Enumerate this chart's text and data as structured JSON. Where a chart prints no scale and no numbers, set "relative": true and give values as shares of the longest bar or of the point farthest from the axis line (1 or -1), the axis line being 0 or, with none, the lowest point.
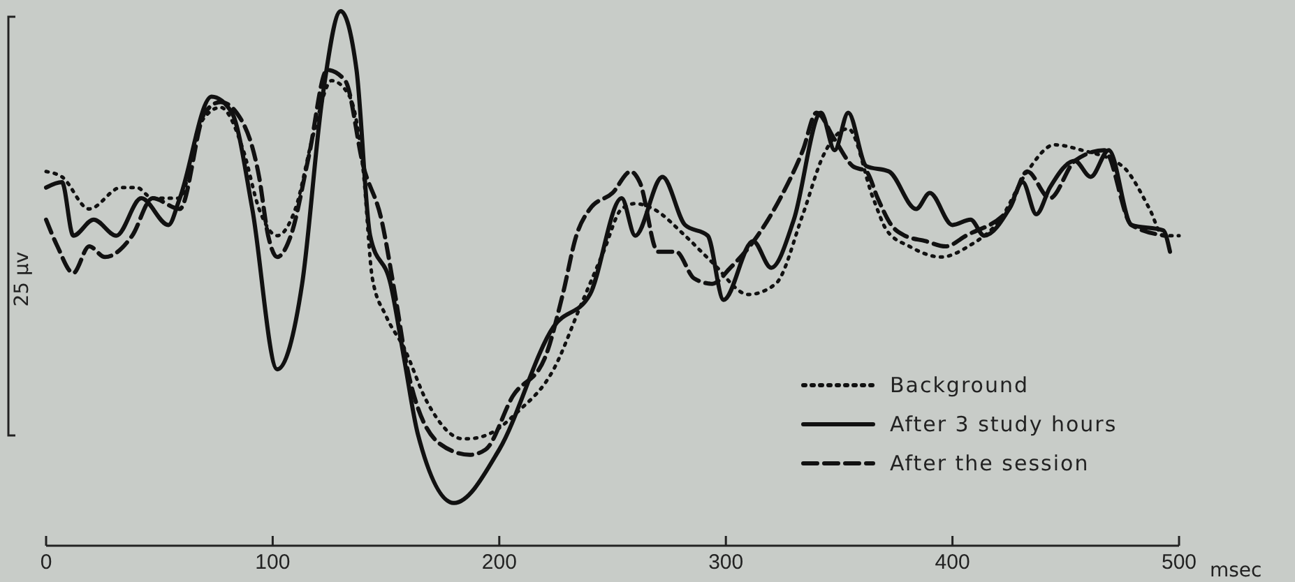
{
  "chart_data": {
    "type": "line",
    "relative": true,
    "xlabel": "msec",
    "ylabel": "25 µv",
    "xlim": [
      0,
      500
    ],
    "xticks": [
      0,
      100,
      200,
      300,
      400,
      500
    ],
    "legend": "bottom right",
    "grid": false,
    "marker": "none",
    "series": [
      {
        "name": "Background",
        "color": "#111111",
        "line_style": "dotted",
        "x": [
          0,
          7,
          19,
          33,
          40,
          47,
          59,
          68,
          77,
          87,
          94,
          102,
          110,
          118,
          126,
          134,
          140,
          144,
          150,
          158,
          168,
          184,
          186,
          196,
          208,
          224,
          236,
          246,
          254,
          260,
          268,
          282,
          294,
          310,
          322,
          334,
          343,
          354,
          365,
          371,
          381,
          395,
          407,
          421,
          433,
          445,
          457,
          475,
          487,
          493,
          500
        ],
        "values": [
          0.7,
          0.69,
          0.63,
          0.67,
          0.67,
          0.65,
          0.65,
          0.79,
          0.82,
          0.74,
          0.63,
          0.58,
          0.63,
          0.77,
          0.87,
          0.84,
          0.7,
          0.5,
          0.43,
          0.37,
          0.27,
          0.2,
          0.2,
          0.21,
          0.25,
          0.33,
          0.45,
          0.55,
          0.63,
          0.64,
          0.63,
          0.58,
          0.53,
          0.47,
          0.49,
          0.62,
          0.73,
          0.78,
          0.65,
          0.59,
          0.56,
          0.54,
          0.56,
          0.61,
          0.7,
          0.75,
          0.74,
          0.71,
          0.63,
          0.58,
          0.58
        ]
      },
      {
        "name": "After 3 study hours",
        "color": "#111111",
        "line_style": "solid",
        "x": [
          0,
          7,
          12,
          21,
          31,
          42,
          54,
          59,
          73,
          82,
          91,
          102,
          113,
          122,
          130,
          137,
          143,
          152,
          158,
          164,
          180,
          200,
          224,
          240,
          254,
          260,
          272,
          282,
          292,
          299,
          312,
          320,
          330,
          342,
          348,
          354,
          362,
          372,
          384,
          390,
          400,
          408,
          414,
          425,
          431,
          437,
          443,
          454,
          461,
          469,
          479,
          493,
          496
        ],
        "values": [
          0.67,
          0.68,
          0.58,
          0.61,
          0.58,
          0.65,
          0.6,
          0.65,
          0.84,
          0.81,
          0.63,
          0.33,
          0.49,
          0.84,
          1.0,
          0.89,
          0.58,
          0.49,
          0.35,
          0.21,
          0.08,
          0.18,
          0.41,
          0.47,
          0.65,
          0.58,
          0.69,
          0.6,
          0.58,
          0.46,
          0.57,
          0.52,
          0.61,
          0.81,
          0.74,
          0.81,
          0.71,
          0.7,
          0.63,
          0.66,
          0.6,
          0.61,
          0.58,
          0.63,
          0.68,
          0.62,
          0.67,
          0.72,
          0.69,
          0.74,
          0.6,
          0.59,
          0.55
        ]
      },
      {
        "name": "After the session",
        "color": "#111111",
        "line_style": "dashed",
        "x": [
          0,
          5,
          12,
          19,
          26,
          38,
          47,
          59,
          70,
          77,
          87,
          94,
          98,
          102,
          108,
          116,
          124,
          132,
          140,
          148,
          154,
          160,
          174,
          187,
          194,
          206,
          220,
          228,
          234,
          240,
          250,
          258,
          262,
          270,
          278,
          286,
          294,
          302,
          314,
          324,
          334,
          340,
          348,
          356,
          362,
          367,
          373,
          379,
          388,
          397,
          406,
          425,
          433,
          443,
          454,
          467,
          479,
          494
        ],
        "values": [
          0.61,
          0.56,
          0.51,
          0.56,
          0.54,
          0.58,
          0.65,
          0.63,
          0.81,
          0.83,
          0.79,
          0.69,
          0.58,
          0.54,
          0.58,
          0.73,
          0.89,
          0.87,
          0.71,
          0.61,
          0.47,
          0.32,
          0.19,
          0.17,
          0.18,
          0.28,
          0.35,
          0.47,
          0.58,
          0.63,
          0.66,
          0.7,
          0.68,
          0.55,
          0.55,
          0.5,
          0.49,
          0.52,
          0.58,
          0.65,
          0.74,
          0.81,
          0.76,
          0.71,
          0.7,
          0.65,
          0.6,
          0.58,
          0.57,
          0.56,
          0.58,
          0.63,
          0.7,
          0.65,
          0.72,
          0.74,
          0.6,
          0.58
        ]
      }
    ]
  }
}
